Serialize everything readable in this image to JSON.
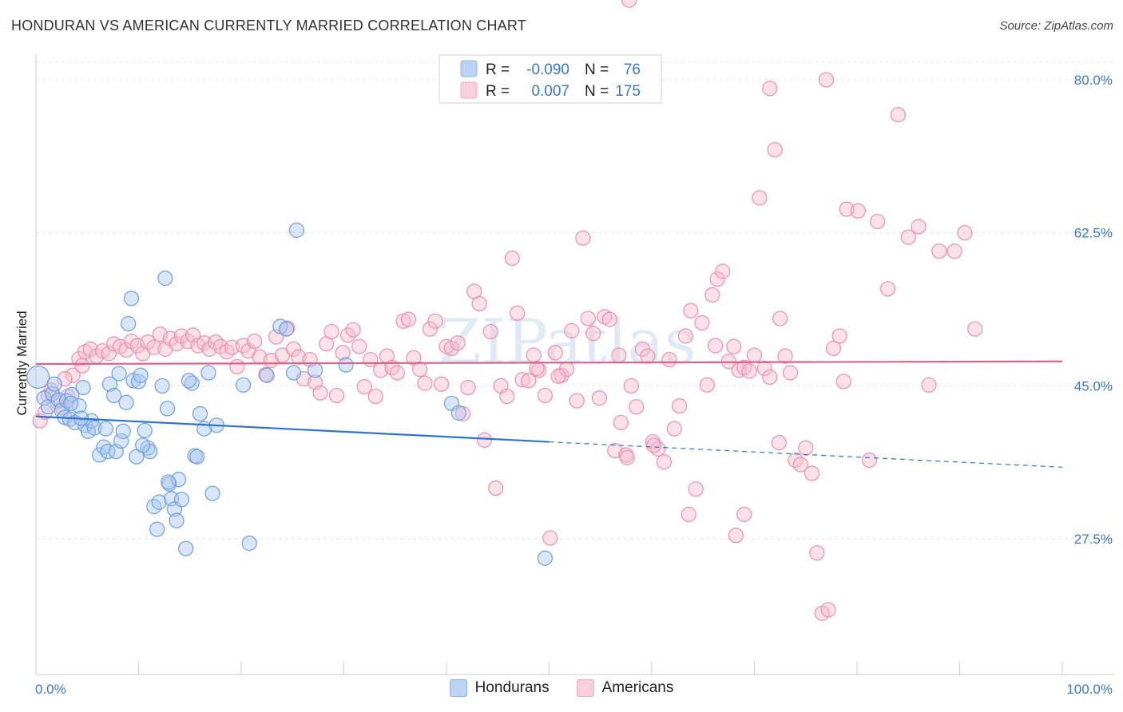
{
  "title": "HONDURAN VS AMERICAN CURRENTLY MARRIED CORRELATION CHART",
  "source": "Source: ZipAtlas.com",
  "watermark": "ZIPatlas",
  "colors": {
    "blue_fill": "#a9c8f0",
    "blue_stroke": "#6d9fe0",
    "blue_line": "#2f73d0",
    "pink_fill": "#f6bccd",
    "pink_stroke": "#ec8fad",
    "pink_line": "#e0608a",
    "tick": "#3a78c8",
    "grid": "#e3e3e3"
  },
  "legend": {
    "r_label": "R =",
    "n_label": "N =",
    "rows": [
      {
        "series": "Hondurans",
        "r": "-0.090",
        "n": "76"
      },
      {
        "series": "Americans",
        "r": "0.007",
        "n": "175"
      }
    ]
  },
  "chart_data": {
    "type": "scatter",
    "title": "HONDURAN VS AMERICAN CURRENTLY MARRIED CORRELATION CHART",
    "xlabel": "",
    "ylabel": "Currently Married",
    "xlim": [
      0,
      100
    ],
    "ylim": [
      12,
      82
    ],
    "x_tick_labels": [
      "0.0%",
      "100.0%"
    ],
    "y_ticks": [
      27.5,
      45.0,
      62.5,
      80.0
    ],
    "y_tick_labels": [
      "27.5%",
      "45.0%",
      "62.5%",
      "80.0%"
    ],
    "grid": true,
    "legend_position": "top-center",
    "series": [
      {
        "name": "Hondurans",
        "r": -0.09,
        "n": 76,
        "trend": {
          "x0": 0,
          "y0": 41.5,
          "x1": 100,
          "y1": 35.7,
          "solid_until": 50
        },
        "points": [
          [
            0.2,
            46.0
          ],
          [
            0.8,
            43.6
          ],
          [
            1.2,
            42.6
          ],
          [
            1.6,
            44.1
          ],
          [
            1.8,
            45.2
          ],
          [
            2.2,
            43.4
          ],
          [
            2.5,
            42.2
          ],
          [
            2.8,
            41.4
          ],
          [
            3.0,
            43.3
          ],
          [
            3.3,
            41.2
          ],
          [
            3.5,
            44.0
          ],
          [
            3.8,
            40.8
          ],
          [
            4.2,
            42.7
          ],
          [
            4.6,
            44.8
          ],
          [
            4.8,
            40.5
          ],
          [
            5.1,
            39.8
          ],
          [
            5.4,
            41.0
          ],
          [
            5.7,
            40.2
          ],
          [
            6.2,
            37.1
          ],
          [
            6.6,
            38.0
          ],
          [
            7.0,
            37.5
          ],
          [
            7.2,
            45.2
          ],
          [
            7.6,
            43.9
          ],
          [
            7.8,
            37.5
          ],
          [
            8.1,
            46.4
          ],
          [
            8.3,
            38.7
          ],
          [
            8.5,
            39.8
          ],
          [
            8.8,
            43.1
          ],
          [
            9.0,
            52.1
          ],
          [
            9.3,
            55.0
          ],
          [
            9.5,
            45.6
          ],
          [
            9.8,
            36.9
          ],
          [
            10.0,
            45.5
          ],
          [
            10.2,
            46.2
          ],
          [
            10.6,
            39.9
          ],
          [
            10.9,
            37.9
          ],
          [
            11.1,
            37.5
          ],
          [
            11.5,
            31.2
          ],
          [
            11.8,
            28.6
          ],
          [
            12.0,
            31.7
          ],
          [
            12.3,
            45.0
          ],
          [
            12.6,
            57.3
          ],
          [
            12.8,
            42.4
          ],
          [
            13.0,
            33.8
          ],
          [
            13.2,
            32.1
          ],
          [
            13.5,
            30.9
          ],
          [
            13.7,
            29.6
          ],
          [
            13.9,
            34.3
          ],
          [
            14.2,
            32.0
          ],
          [
            14.6,
            26.4
          ],
          [
            15.2,
            45.3
          ],
          [
            15.5,
            37.0
          ],
          [
            15.7,
            36.9
          ],
          [
            16.0,
            41.8
          ],
          [
            16.4,
            40.1
          ],
          [
            16.8,
            46.5
          ],
          [
            17.2,
            32.7
          ],
          [
            20.2,
            45.1
          ],
          [
            20.8,
            27.0
          ],
          [
            22.5,
            46.2
          ],
          [
            23.8,
            51.8
          ],
          [
            25.1,
            46.5
          ],
          [
            25.4,
            62.8
          ],
          [
            27.2,
            46.8
          ],
          [
            30.2,
            47.4
          ],
          [
            40.5,
            43.0
          ],
          [
            41.2,
            41.9
          ],
          [
            49.6,
            25.3
          ],
          [
            3.4,
            43.0
          ],
          [
            4.4,
            41.3
          ],
          [
            6.8,
            40.1
          ],
          [
            10.4,
            38.2
          ],
          [
            12.9,
            34.0
          ],
          [
            14.9,
            45.6
          ],
          [
            17.6,
            40.5
          ],
          [
            24.4,
            51.5
          ]
        ]
      },
      {
        "name": "Americans",
        "r": 0.007,
        "n": 175,
        "trend": {
          "x0": 0,
          "y0": 47.5,
          "x1": 100,
          "y1": 47.8
        },
        "points": [
          [
            0.4,
            41.0
          ],
          [
            1.2,
            43.9
          ],
          [
            2.1,
            43.2
          ],
          [
            2.6,
            42.5
          ],
          [
            3.1,
            43.8
          ],
          [
            3.6,
            46.2
          ],
          [
            4.2,
            48.1
          ],
          [
            4.8,
            48.9
          ],
          [
            5.3,
            49.2
          ],
          [
            5.9,
            48.4
          ],
          [
            6.5,
            49.0
          ],
          [
            7.1,
            48.7
          ],
          [
            7.6,
            49.8
          ],
          [
            8.2,
            49.5
          ],
          [
            8.8,
            49.1
          ],
          [
            9.3,
            50.1
          ],
          [
            9.9,
            49.6
          ],
          [
            10.4,
            48.7
          ],
          [
            10.9,
            50.0
          ],
          [
            11.5,
            49.4
          ],
          [
            12.1,
            50.9
          ],
          [
            12.6,
            49.2
          ],
          [
            13.1,
            50.4
          ],
          [
            13.7,
            49.8
          ],
          [
            14.2,
            50.7
          ],
          [
            14.8,
            50.1
          ],
          [
            15.3,
            50.8
          ],
          [
            15.8,
            49.6
          ],
          [
            16.4,
            49.9
          ],
          [
            16.9,
            49.2
          ],
          [
            17.5,
            50.0
          ],
          [
            18.0,
            49.5
          ],
          [
            18.6,
            48.9
          ],
          [
            19.1,
            49.4
          ],
          [
            19.6,
            47.2
          ],
          [
            20.2,
            49.6
          ],
          [
            20.7,
            49.0
          ],
          [
            21.3,
            50.1
          ],
          [
            21.8,
            48.3
          ],
          [
            22.4,
            46.3
          ],
          [
            22.9,
            47.9
          ],
          [
            23.4,
            50.6
          ],
          [
            24.0,
            48.5
          ],
          [
            24.5,
            51.6
          ],
          [
            25.1,
            49.2
          ],
          [
            25.6,
            48.3
          ],
          [
            26.1,
            45.8
          ],
          [
            26.7,
            48.0
          ],
          [
            27.2,
            45.4
          ],
          [
            27.7,
            44.2
          ],
          [
            28.3,
            49.8
          ],
          [
            28.8,
            51.2
          ],
          [
            29.3,
            43.9
          ],
          [
            29.9,
            48.8
          ],
          [
            30.4,
            50.8
          ],
          [
            30.9,
            51.4
          ],
          [
            31.5,
            49.5
          ],
          [
            32.0,
            44.9
          ],
          [
            32.6,
            48.0
          ],
          [
            33.1,
            43.8
          ],
          [
            33.6,
            46.8
          ],
          [
            34.2,
            48.4
          ],
          [
            34.7,
            47.1
          ],
          [
            35.2,
            46.5
          ],
          [
            35.8,
            52.4
          ],
          [
            36.3,
            52.6
          ],
          [
            36.8,
            48.2
          ],
          [
            37.4,
            46.9
          ],
          [
            37.9,
            45.3
          ],
          [
            38.4,
            51.5
          ],
          [
            38.9,
            52.4
          ],
          [
            39.5,
            45.2
          ],
          [
            40.0,
            49.5
          ],
          [
            40.5,
            49.3
          ],
          [
            41.1,
            49.9
          ],
          [
            41.6,
            41.8
          ],
          [
            42.1,
            44.8
          ],
          [
            42.7,
            55.8
          ],
          [
            43.2,
            54.4
          ],
          [
            43.7,
            38.8
          ],
          [
            44.3,
            51.2
          ],
          [
            44.8,
            33.3
          ],
          [
            45.3,
            45.0
          ],
          [
            45.9,
            43.8
          ],
          [
            46.4,
            59.6
          ],
          [
            46.9,
            53.3
          ],
          [
            47.4,
            45.7
          ],
          [
            48.0,
            45.6
          ],
          [
            48.5,
            48.5
          ],
          [
            49.0,
            46.8
          ],
          [
            49.6,
            43.9
          ],
          [
            50.1,
            27.6
          ],
          [
            50.6,
            48.8
          ],
          [
            51.2,
            46.2
          ],
          [
            51.7,
            46.9
          ],
          [
            52.2,
            51.3
          ],
          [
            52.7,
            43.3
          ],
          [
            53.3,
            61.9
          ],
          [
            53.8,
            52.7
          ],
          [
            54.3,
            51.0
          ],
          [
            54.9,
            43.6
          ],
          [
            55.4,
            52.9
          ],
          [
            55.9,
            52.6
          ],
          [
            56.4,
            37.6
          ],
          [
            57.0,
            40.8
          ],
          [
            57.5,
            37.1
          ],
          [
            58.0,
            45.0
          ],
          [
            58.5,
            42.6
          ],
          [
            59.1,
            49.2
          ],
          [
            59.6,
            48.4
          ],
          [
            60.1,
            38.6
          ],
          [
            60.6,
            37.8
          ],
          [
            61.2,
            36.3
          ],
          [
            61.7,
            48.0
          ],
          [
            62.2,
            40.1
          ],
          [
            62.7,
            42.7
          ],
          [
            63.3,
            50.7
          ],
          [
            63.8,
            53.6
          ],
          [
            64.3,
            33.2
          ],
          [
            64.9,
            52.2
          ],
          [
            65.4,
            45.1
          ],
          [
            65.9,
            55.4
          ],
          [
            66.4,
            57.2
          ],
          [
            66.9,
            58.1
          ],
          [
            67.5,
            47.8
          ],
          [
            68.0,
            49.5
          ],
          [
            68.5,
            46.8
          ],
          [
            69.0,
            47.1
          ],
          [
            69.5,
            46.7
          ],
          [
            70.0,
            48.5
          ],
          [
            70.5,
            66.5
          ],
          [
            71.0,
            47.0
          ],
          [
            71.5,
            46.0
          ],
          [
            72.0,
            72.0
          ],
          [
            72.5,
            52.7
          ],
          [
            73.0,
            48.4
          ],
          [
            73.5,
            46.5
          ],
          [
            74.0,
            36.5
          ],
          [
            74.5,
            36.0
          ],
          [
            75.0,
            37.9
          ],
          [
            75.6,
            35.0
          ],
          [
            76.1,
            25.9
          ],
          [
            76.6,
            19.0
          ],
          [
            77.2,
            19.4
          ],
          [
            77.7,
            49.3
          ],
          [
            78.3,
            50.7
          ],
          [
            79.0,
            65.2
          ],
          [
            80.1,
            65.0
          ],
          [
            81.2,
            36.5
          ],
          [
            82.0,
            63.8
          ],
          [
            83.0,
            56.1
          ],
          [
            84.0,
            76.0
          ],
          [
            85.0,
            62.0
          ],
          [
            86.0,
            63.2
          ],
          [
            87.0,
            45.1
          ],
          [
            88.0,
            60.4
          ],
          [
            89.5,
            60.4
          ],
          [
            90.5,
            62.5
          ],
          [
            91.5,
            51.5
          ],
          [
            57.8,
            89.1
          ],
          [
            71.5,
            79.0
          ],
          [
            68.2,
            27.9
          ],
          [
            77.0,
            80.0
          ],
          [
            78.7,
            45.5
          ],
          [
            66.2,
            49.6
          ],
          [
            2.8,
            45.8
          ],
          [
            1.5,
            44.5
          ],
          [
            4.5,
            47.3
          ],
          [
            0.9,
            42.0
          ],
          [
            60.2,
            38.2
          ],
          [
            57.6,
            36.8
          ],
          [
            63.6,
            30.3
          ],
          [
            72.4,
            38.5
          ],
          [
            69.0,
            30.3
          ],
          [
            56.8,
            48.5
          ],
          [
            50.9,
            46.1
          ],
          [
            48.8,
            47.0
          ]
        ]
      }
    ]
  }
}
